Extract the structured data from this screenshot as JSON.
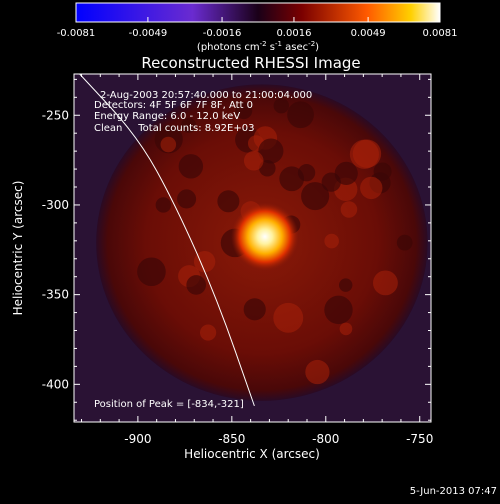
{
  "colorbar": {
    "ticks": [
      "-0.0081",
      "-0.0049",
      "-0.0016",
      "0.0016",
      "0.0049",
      "0.0081"
    ],
    "tick_values": [
      -0.0081,
      -0.0049,
      -0.0016,
      0.0016,
      0.0049,
      0.0081
    ],
    "range": [
      -0.0081,
      0.0081
    ],
    "unit_parts": [
      "(photons cm",
      "-2",
      " s",
      "-1",
      " asec",
      "-2",
      ")"
    ]
  },
  "chart_data": {
    "type": "heatmap",
    "title": "Reconstructed RHESSI Image",
    "xlabel": "Heliocentric X (arcsec)",
    "ylabel": "Heliocentric Y (arcsec)",
    "xlim": [
      -934,
      -744
    ],
    "ylim": [
      -421,
      -227
    ],
    "xticks": [
      -900,
      -850,
      -800,
      -750
    ],
    "yticks": [
      -250,
      -300,
      -350,
      -400
    ],
    "peak": [
      -834,
      -321
    ],
    "disk_center": [
      -834,
      -321
    ],
    "disk_radius": 90,
    "limb": [
      [
        -931,
        -227
      ],
      [
        -900,
        -262
      ],
      [
        -880,
        -300
      ],
      [
        -858,
        -352
      ],
      [
        -838,
        -412
      ]
    ],
    "annotations": [
      "2-Aug-2003 20:57:40.000 to 21:00:04.000",
      "Detectors: 4F 5F 6F 7F 8F, Att 0",
      "Energy Range: 6.0 - 12.0 keV",
      "Clean     Total counts: 8.92E+03"
    ],
    "peak_label": "Position of Peak = [-834,-321]",
    "grid": false
  },
  "timestamp": "5-Jun-2013 07:47"
}
